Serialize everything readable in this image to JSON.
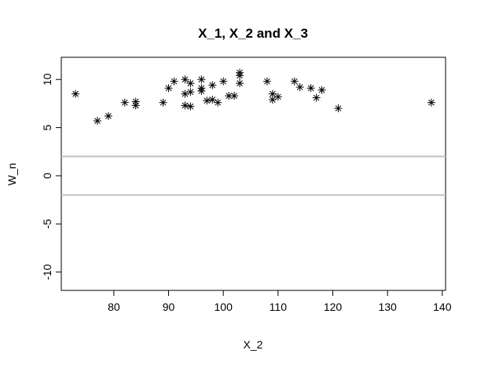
{
  "chart_data": {
    "type": "scatter",
    "title": "X_1, X_2 and X_3",
    "x_label": "X_2",
    "y_label": "W_n",
    "x": [
      73,
      77,
      79,
      82,
      84,
      84,
      89,
      90,
      91,
      93,
      93,
      93,
      94,
      94,
      94,
      96,
      96,
      96,
      97,
      98,
      98,
      99,
      100,
      101,
      102,
      103,
      103,
      103,
      108,
      109,
      109,
      110,
      113,
      114,
      116,
      117,
      118,
      121,
      138
    ],
    "values": [
      8.5,
      5.7,
      6.2,
      7.6,
      7.7,
      7.3,
      7.6,
      9.1,
      9.8,
      10,
      8.5,
      7.3,
      7.2,
      8.7,
      9.6,
      10,
      9.1,
      8.8,
      7.8,
      7.9,
      9.4,
      7.6,
      9.8,
      8.3,
      8.3,
      10.7,
      10.4,
      9.6,
      9.8,
      8.5,
      7.9,
      8.2,
      9.8,
      9.2,
      9.1,
      8.1,
      8.9,
      7.0,
      7.6
    ],
    "color": "#000000",
    "reference_lines": [
      2,
      -2
    ],
    "reference_color": "#c0c0c0",
    "xlim": [
      70.4,
      140.6
    ],
    "ylim": [
      -11.9,
      12.3
    ],
    "xticks": [
      80,
      90,
      100,
      110,
      120,
      130,
      140
    ],
    "yticks": [
      -10,
      -5,
      0,
      5,
      10
    ]
  }
}
